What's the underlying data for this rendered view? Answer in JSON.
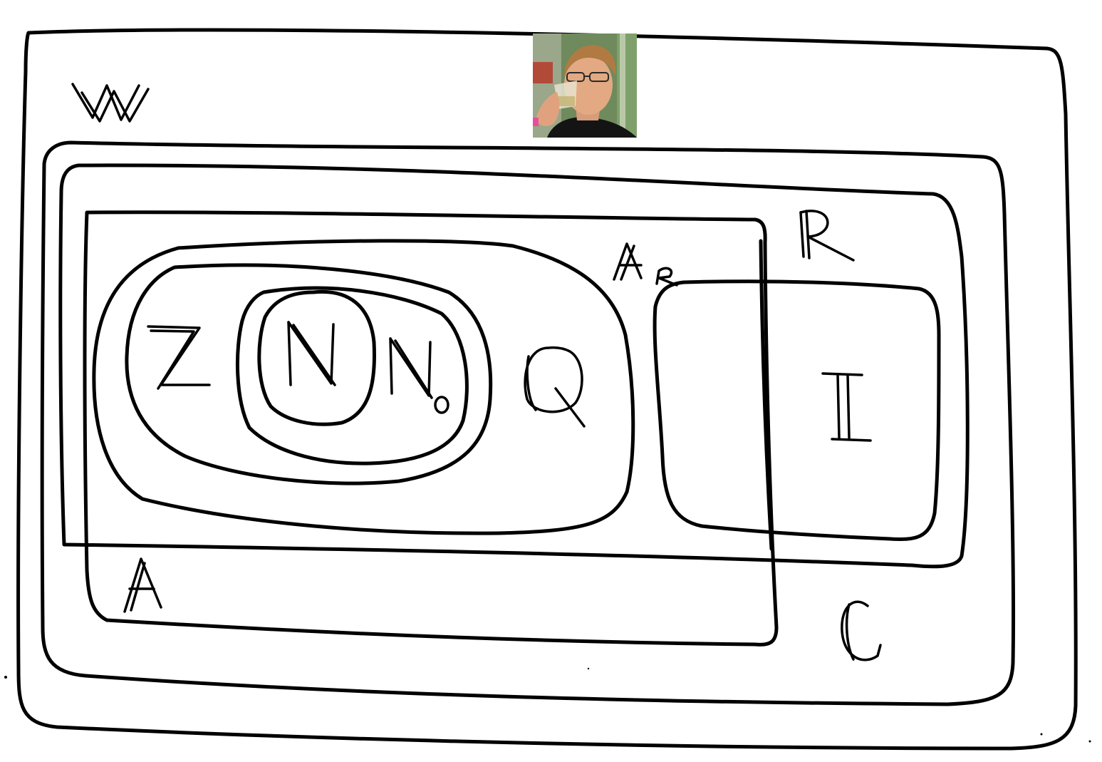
{
  "diagram": {
    "labels": {
      "W": "W",
      "Z": "Z",
      "N": "N",
      "N0": "N",
      "N0_sub": "0",
      "Q": "Q",
      "A_R": "A",
      "A_R_sub": "R",
      "R": "R",
      "I": "I",
      "A": "A",
      "C": "C"
    },
    "portrait": {
      "description_icon": "person-photo-icon"
    }
  }
}
